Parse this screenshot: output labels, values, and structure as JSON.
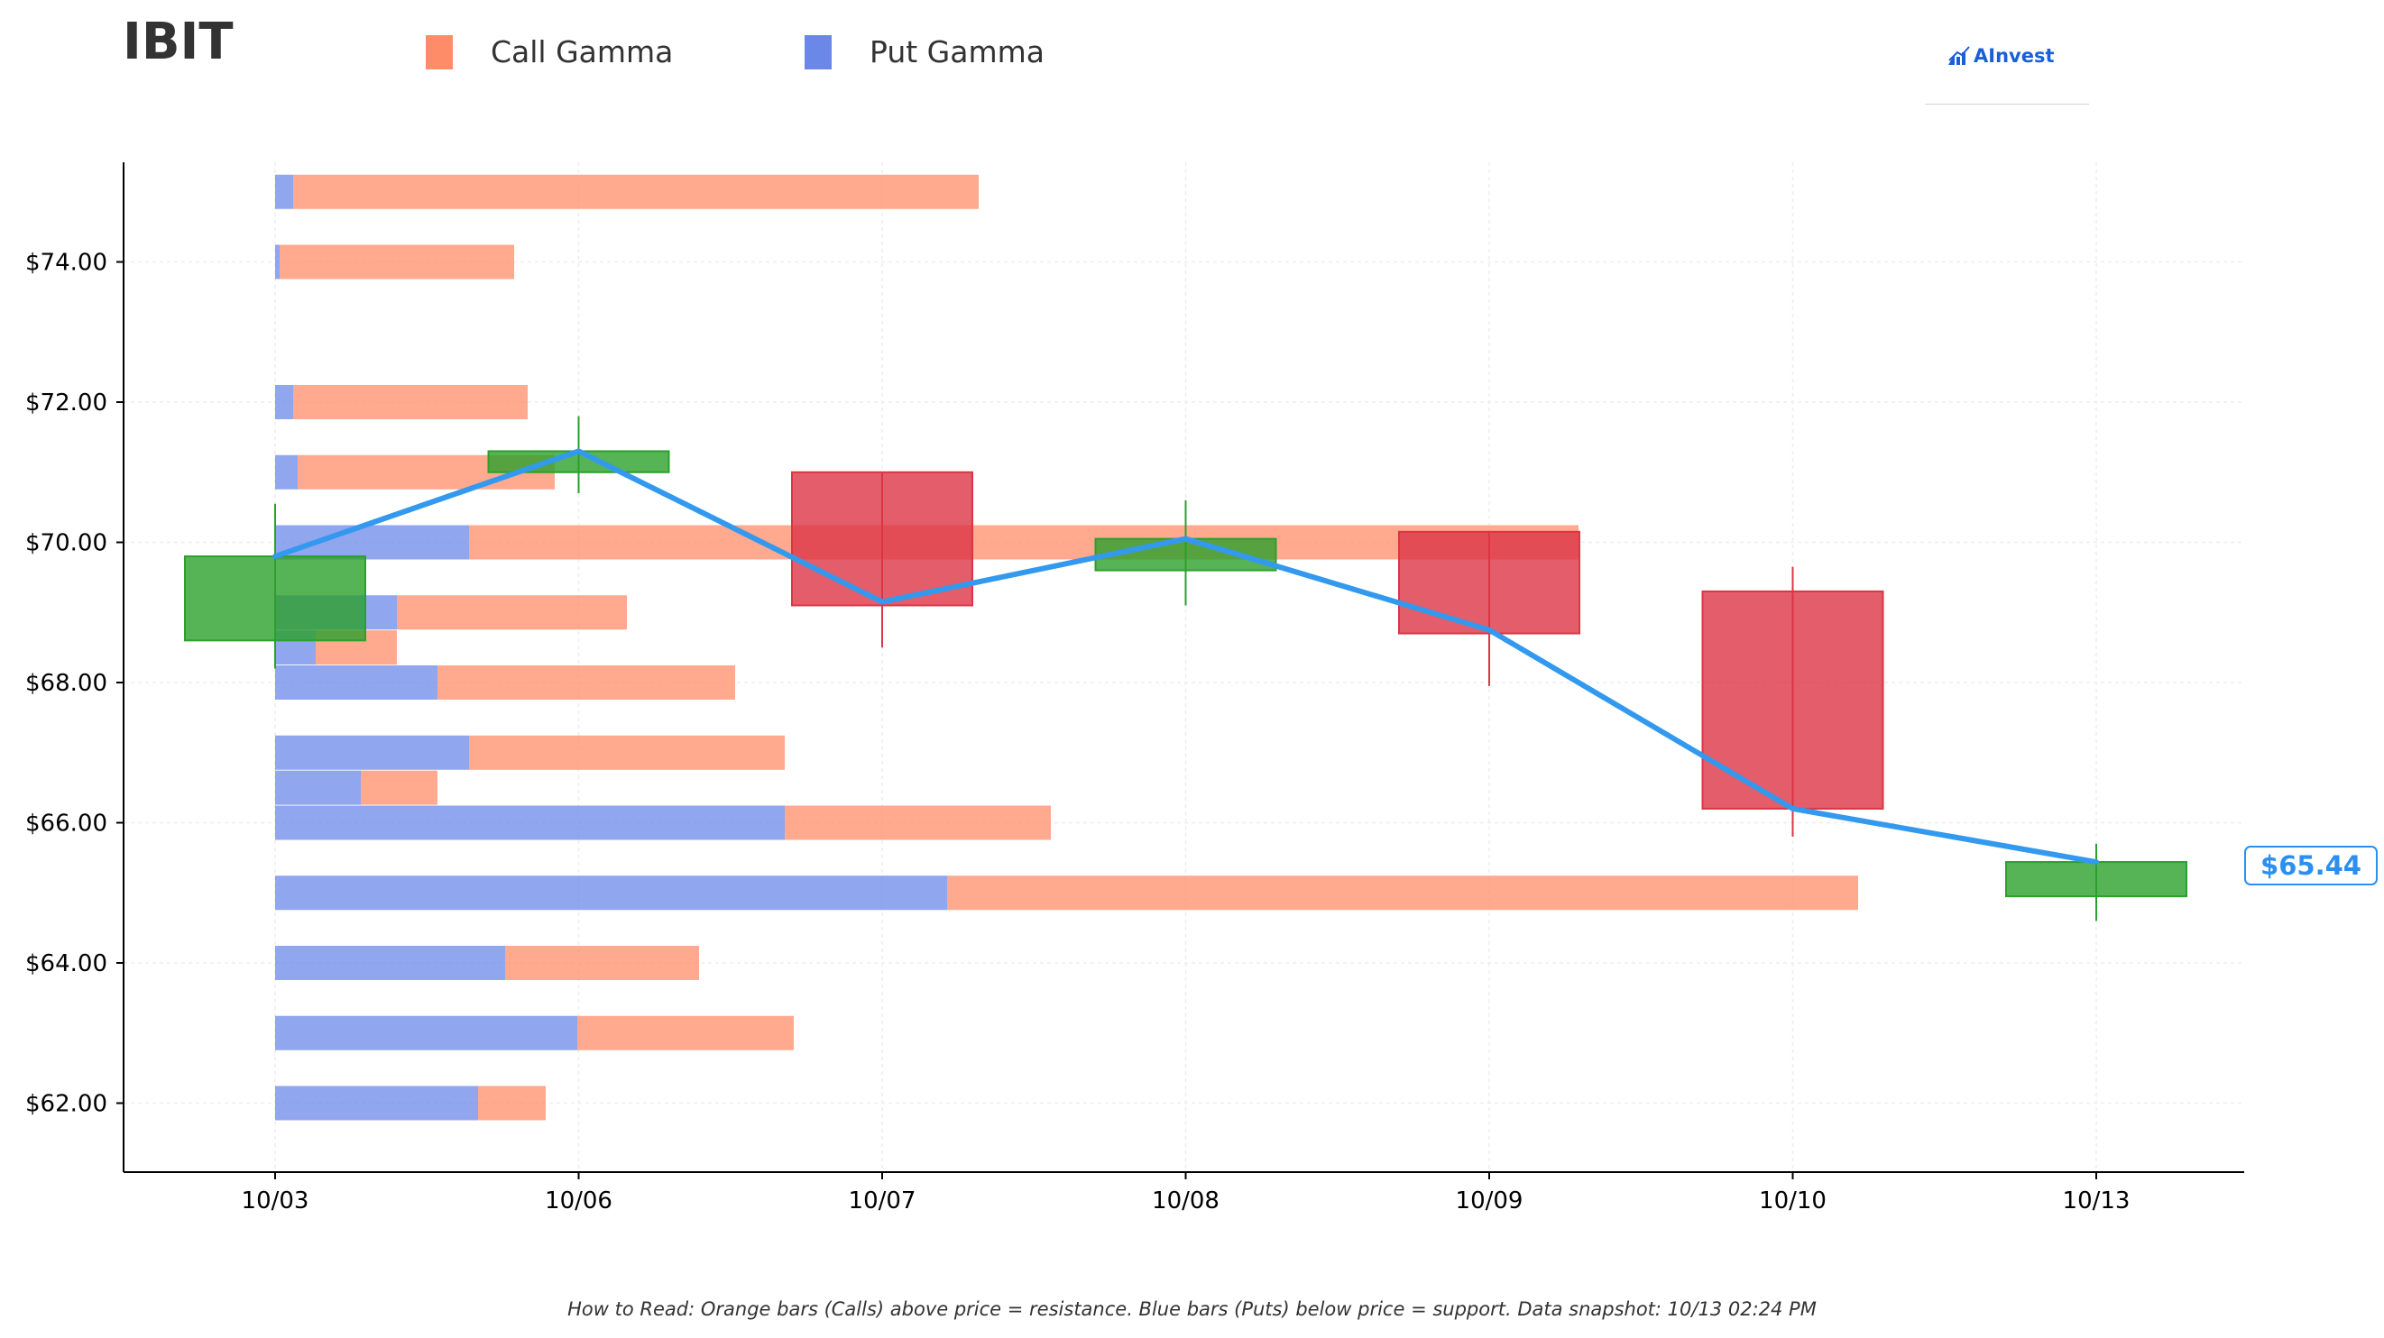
{
  "ticker": "IBIT",
  "legend": [
    {
      "label": "Call Gamma",
      "color": "#ff8c69"
    },
    {
      "label": "Put Gamma",
      "color": "#6b88e8"
    }
  ],
  "brand": {
    "name": "AInvest",
    "icon": "ainvest-logo-icon",
    "color": "#1a5fd8"
  },
  "footnote": "How to Read: Orange bars (Calls) above price = resistance. Blue bars (Puts) below price = support. Data snapshot: 10/13 02:24 PM",
  "current_price_label": "$65.44",
  "colors": {
    "call": "#ff8c69",
    "put": "#6b88e8",
    "up_candle": "#2ca02c",
    "down_candle": "#dc3545",
    "price_line": "#3399ee",
    "axis": "#000000",
    "grid": "#eeeeee"
  },
  "chart_data": {
    "type": "candlestick with horizontal gamma bars",
    "x_categories": [
      "10/03",
      "10/06",
      "10/07",
      "10/08",
      "10/09",
      "10/10",
      "10/13"
    ],
    "y_ticks": [
      62,
      64,
      66,
      68,
      70,
      72,
      74
    ],
    "y_tick_labels": [
      "$62.00",
      "$64.00",
      "$66.00",
      "$68.00",
      "$70.00",
      "$72.00",
      "$74.00"
    ],
    "ylim": [
      61.0,
      75.5
    ],
    "grid": true,
    "candles": [
      {
        "date": "10/03",
        "open": 68.6,
        "high": 70.55,
        "low": 68.2,
        "close": 69.8
      },
      {
        "date": "10/06",
        "open": 71.0,
        "high": 71.8,
        "low": 70.7,
        "close": 71.3
      },
      {
        "date": "10/07",
        "open": 71.0,
        "high": 71.0,
        "low": 68.5,
        "close": 69.1
      },
      {
        "date": "10/08",
        "open": 69.6,
        "high": 70.6,
        "low": 69.1,
        "close": 70.05
      },
      {
        "date": "10/09",
        "open": 70.15,
        "high": 70.15,
        "low": 67.95,
        "close": 68.7
      },
      {
        "date": "10/10",
        "open": 69.3,
        "high": 69.65,
        "low": 65.8,
        "close": 66.2
      },
      {
        "date": "10/13",
        "open": 64.95,
        "high": 65.7,
        "low": 64.6,
        "close": 65.44
      }
    ],
    "price_line": [
      {
        "date": "10/03",
        "value": 69.8
      },
      {
        "date": "10/06",
        "value": 71.3
      },
      {
        "date": "10/07",
        "value": 69.15
      },
      {
        "date": "10/08",
        "value": 70.05
      },
      {
        "date": "10/09",
        "value": 68.75
      },
      {
        "date": "10/10",
        "value": 66.2
      },
      {
        "date": "10/13",
        "value": 65.44
      }
    ],
    "gamma_bars": [
      {
        "strike": 62,
        "put": 0.45,
        "call": 0.15
      },
      {
        "strike": 63,
        "put": 0.67,
        "call": 0.48
      },
      {
        "strike": 64,
        "put": 0.51,
        "call": 0.43
      },
      {
        "strike": 65,
        "put": 1.49,
        "call": 2.02
      },
      {
        "strike": 66,
        "put": 1.13,
        "call": 0.59
      },
      {
        "strike": 66.5,
        "put": 0.19,
        "call": 0.17
      },
      {
        "strike": 67,
        "put": 0.43,
        "call": 0.7
      },
      {
        "strike": 68,
        "put": 0.36,
        "call": 0.66
      },
      {
        "strike": 68.5,
        "put": 0.09,
        "call": 0.18
      },
      {
        "strike": 69,
        "put": 0.27,
        "call": 0.51
      },
      {
        "strike": 70,
        "put": 0.43,
        "call": 2.46
      },
      {
        "strike": 71,
        "put": 0.05,
        "call": 0.57
      },
      {
        "strike": 72,
        "put": 0.04,
        "call": 0.52
      },
      {
        "strike": 74,
        "put": 0.01,
        "call": 0.52
      },
      {
        "strike": 75,
        "put": 0.04,
        "call": 1.52
      }
    ],
    "current_price": 65.44
  }
}
